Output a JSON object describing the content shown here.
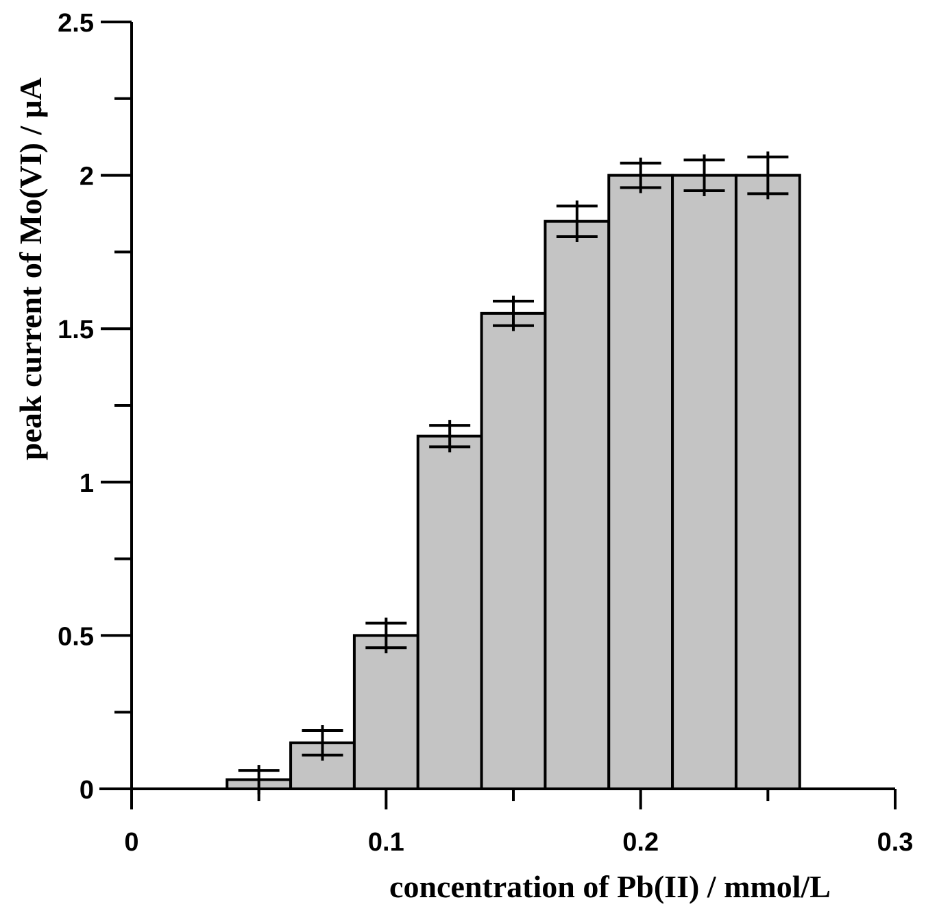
{
  "chart_data": {
    "type": "bar",
    "xlabel": "concentration of Pb(II) / mmol/L",
    "ylabel": "peak current of Mo(VI) / μA",
    "xlim": [
      0,
      0.3
    ],
    "ylim": [
      0,
      2.5
    ],
    "x_major_ticks": [
      0,
      0.1,
      0.2,
      0.3
    ],
    "x_tick_labels": [
      "0",
      "0.1",
      "0.2",
      "0.3"
    ],
    "y_major_ticks": [
      0,
      0.5,
      1,
      1.5,
      2,
      2.5
    ],
    "y_tick_labels": [
      "0",
      "0.5",
      "1",
      "1.5",
      "2",
      "2.5"
    ],
    "bar_width": 0.025,
    "x": [
      0.05,
      0.075,
      0.1,
      0.125,
      0.15,
      0.175,
      0.2,
      0.225,
      0.25
    ],
    "values": [
      0.03,
      0.15,
      0.5,
      1.15,
      1.55,
      1.85,
      2.0,
      2.0,
      2.0
    ],
    "errors": [
      0.03,
      0.04,
      0.04,
      0.035,
      0.04,
      0.05,
      0.04,
      0.05,
      0.06
    ],
    "grid": false,
    "bar_color": "#c4c4c4"
  }
}
